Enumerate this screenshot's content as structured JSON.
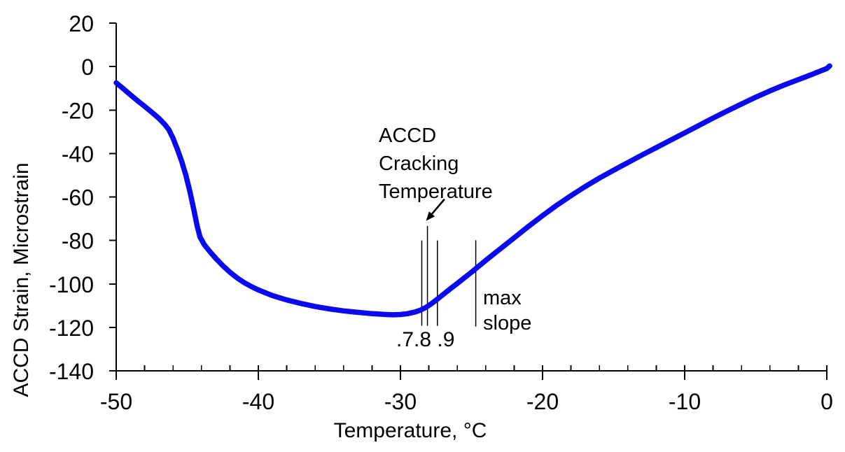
{
  "figure": {
    "background": "#ffffff",
    "curve_color": "#0a0aee",
    "axis_color": "#000000",
    "text_color": "#000000",
    "marker_line_color": "#000000"
  },
  "chart_data": {
    "type": "line",
    "title": "",
    "xlabel": "Temperature, °C",
    "ylabel": "ACCD Strain, Microstrain",
    "xlim": [
      -50,
      0
    ],
    "ylim": [
      -140,
      20
    ],
    "x_major_ticks": [
      -50,
      -40,
      -30,
      -20,
      -10,
      0
    ],
    "x_minor_step": 2,
    "y_ticks": [
      20,
      0,
      -20,
      -40,
      -60,
      -80,
      -100,
      -120,
      -140
    ],
    "grid": false,
    "legend": null,
    "series": [
      {
        "name": "ACCD strain vs temperature",
        "color": "#0a0aee",
        "points": [
          [
            -50,
            -7.5
          ],
          [
            -49.5,
            -10.2
          ],
          [
            -49,
            -13
          ],
          [
            -48.5,
            -15.7
          ],
          [
            -48,
            -18.3
          ],
          [
            -47.5,
            -21
          ],
          [
            -47,
            -23.8
          ],
          [
            -46.6,
            -26.5
          ],
          [
            -46.3,
            -29
          ],
          [
            -46,
            -33
          ],
          [
            -45.7,
            -38
          ],
          [
            -45.4,
            -43.5
          ],
          [
            -45.1,
            -50
          ],
          [
            -44.8,
            -58
          ],
          [
            -44.5,
            -67
          ],
          [
            -44.3,
            -73.5
          ],
          [
            -44.1,
            -78.5
          ],
          [
            -43.8,
            -82
          ],
          [
            -43.4,
            -85.2
          ],
          [
            -43,
            -88.2
          ],
          [
            -42.5,
            -91.6
          ],
          [
            -42,
            -94.6
          ],
          [
            -41.5,
            -97.2
          ],
          [
            -41,
            -99.4
          ],
          [
            -40.5,
            -101.2
          ],
          [
            -40,
            -102.8
          ],
          [
            -39,
            -105.4
          ],
          [
            -38,
            -107.4
          ],
          [
            -37,
            -109
          ],
          [
            -36,
            -110.4
          ],
          [
            -35,
            -111.5
          ],
          [
            -34,
            -112.4
          ],
          [
            -33,
            -113.1
          ],
          [
            -32,
            -113.7
          ],
          [
            -31,
            -114.1
          ],
          [
            -30.5,
            -114.2
          ],
          [
            -30,
            -114.1
          ],
          [
            -29.5,
            -113.7
          ],
          [
            -29,
            -113
          ],
          [
            -28.6,
            -112.1
          ],
          [
            -28.2,
            -110.8
          ],
          [
            -27.8,
            -109
          ],
          [
            -27.4,
            -107
          ],
          [
            -27,
            -104.9
          ],
          [
            -26.5,
            -102.3
          ],
          [
            -26,
            -99.8
          ],
          [
            -25.5,
            -97.2
          ],
          [
            -25,
            -94.6
          ],
          [
            -24.5,
            -91.9
          ],
          [
            -24,
            -89.2
          ],
          [
            -23.5,
            -86.6
          ],
          [
            -23,
            -84
          ],
          [
            -22,
            -78.8
          ],
          [
            -21,
            -73.6
          ],
          [
            -20,
            -68.6
          ],
          [
            -19,
            -63.8
          ],
          [
            -18,
            -59.4
          ],
          [
            -17,
            -55.2
          ],
          [
            -16,
            -51.3
          ],
          [
            -15,
            -47.7
          ],
          [
            -14,
            -44.2
          ],
          [
            -13,
            -40.7
          ],
          [
            -12,
            -37.3
          ],
          [
            -11,
            -33.9
          ],
          [
            -10,
            -30.5
          ],
          [
            -9,
            -27.1
          ],
          [
            -8,
            -23.7
          ],
          [
            -7,
            -20.4
          ],
          [
            -6,
            -17.2
          ],
          [
            -5,
            -14.1
          ],
          [
            -4,
            -11.2
          ],
          [
            -3,
            -8.5
          ],
          [
            -2,
            -6
          ],
          [
            -1,
            -3.5
          ],
          [
            0,
            -0.9
          ],
          [
            0.2,
            0.3
          ]
        ]
      }
    ],
    "annotations": {
      "cracking_temperature": {
        "label_lines": [
          "ACCD",
          "Cracking",
          "Temperature"
        ],
        "pointer_temperature": -28.1,
        "arrow": {
          "from_T": -26.9,
          "from_v": -61,
          "to_T": -28.2,
          "to_v": -71
        }
      },
      "marker_lines": [
        {
          "name": "slope-fraction-0.7-line",
          "T": -28.5,
          "v_top": -80,
          "v_bottom": -119.3
        },
        {
          "name": "cracking-temperature-line",
          "T": -28.1,
          "v_top": -73.3,
          "v_bottom": -119.3
        },
        {
          "name": "slope-fraction-0.9-line",
          "T": -27.4,
          "v_top": -80,
          "v_bottom": -119.3
        },
        {
          "name": "max-slope-line",
          "T": -24.7,
          "v_top": -79.9,
          "v_bottom": -119.6
        }
      ],
      "slope_fraction_label": ".7.8 .9",
      "max_slope": {
        "label_lines": [
          "max",
          "slope"
        ]
      }
    }
  }
}
